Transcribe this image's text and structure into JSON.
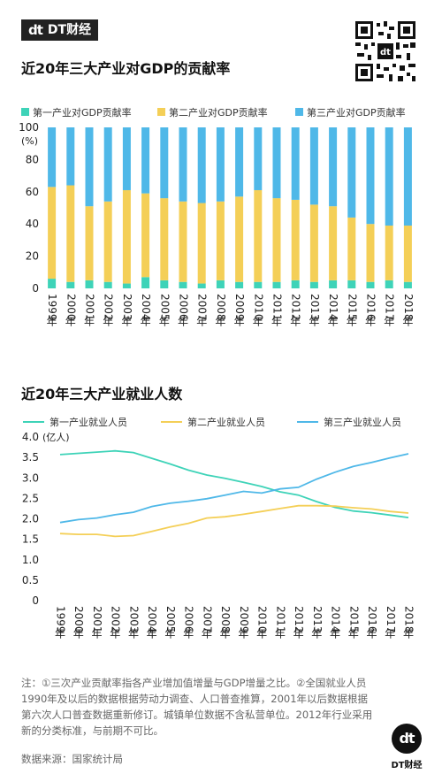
{
  "brand": {
    "mark": "dt",
    "name": "DT财经"
  },
  "chart_data": [
    {
      "type": "bar",
      "stacked": true,
      "title": "近20年三大产业对GDP的贡献率",
      "ylabel": "(%)",
      "ylim": [
        0,
        100
      ],
      "yticks": [
        0,
        20,
        40,
        60,
        80,
        100
      ],
      "legend_position": "top",
      "categories": [
        "1999年",
        "2000年",
        "2001年",
        "2002年",
        "2003年",
        "2004年",
        "2005年",
        "2006年",
        "2007年",
        "2008年",
        "2009年",
        "2010年",
        "2011年",
        "2012年",
        "2013年",
        "2014年",
        "2015年",
        "2016年",
        "2017年",
        "2018年"
      ],
      "series": [
        {
          "name": "第一产业对GDP贡献率",
          "color": "#3ed3b8",
          "values": [
            6,
            4,
            5,
            4,
            3,
            7,
            5,
            4,
            3,
            5,
            4,
            4,
            4,
            5,
            4,
            5,
            5,
            4,
            5,
            4
          ]
        },
        {
          "name": "第二产业对GDP贡献率",
          "color": "#f4cf57",
          "values": [
            57,
            60,
            46,
            50,
            58,
            52,
            51,
            50,
            50,
            49,
            53,
            57,
            52,
            50,
            48,
            46,
            39,
            36,
            34,
            35
          ]
        },
        {
          "name": "第三产业对GDP贡献率",
          "color": "#4fb8e8",
          "values": [
            37,
            36,
            49,
            46,
            39,
            41,
            44,
            46,
            47,
            46,
            43,
            39,
            44,
            45,
            48,
            49,
            56,
            60,
            61,
            61
          ]
        }
      ]
    },
    {
      "type": "line",
      "title": "近20年三大产业就业人数",
      "ylabel": "(亿人)",
      "ylim": [
        0,
        4.0
      ],
      "yticks": [
        "0",
        "0.5",
        "1.0",
        "1.5",
        "2.0",
        "2.5",
        "3.0",
        "3.5",
        "4.0"
      ],
      "legend_position": "top",
      "categories": [
        "1999年",
        "2000年",
        "2001年",
        "2002年",
        "2003年",
        "2004年",
        "2005年",
        "2006年",
        "2007年",
        "2008年",
        "2009年",
        "2010年",
        "2011年",
        "2012年",
        "2013年",
        "2014年",
        "2015年",
        "2016年",
        "2017年",
        "2018年"
      ],
      "series": [
        {
          "name": "第一产业就业人员",
          "color": "#3ed3b8",
          "values": [
            3.57,
            3.6,
            3.63,
            3.66,
            3.62,
            3.48,
            3.34,
            3.19,
            3.07,
            2.99,
            2.89,
            2.79,
            2.66,
            2.58,
            2.42,
            2.28,
            2.19,
            2.15,
            2.09,
            2.03
          ]
        },
        {
          "name": "第二产业就业人员",
          "color": "#f4cf57",
          "values": [
            1.64,
            1.62,
            1.62,
            1.57,
            1.59,
            1.69,
            1.8,
            1.89,
            2.02,
            2.05,
            2.11,
            2.18,
            2.25,
            2.32,
            2.32,
            2.31,
            2.27,
            2.24,
            2.18,
            2.14
          ]
        },
        {
          "name": "第三产业就业人员",
          "color": "#4fb8e8",
          "values": [
            1.91,
            1.98,
            2.02,
            2.1,
            2.16,
            2.3,
            2.38,
            2.43,
            2.49,
            2.58,
            2.67,
            2.63,
            2.73,
            2.77,
            2.97,
            3.14,
            3.28,
            3.38,
            3.49,
            3.59
          ]
        }
      ]
    }
  ],
  "notes": "注：①三次产业贡献率指各产业增加值增量与GDP增量之比。②全国就业人员1990年及以后的数据根据劳动力调查、人口普查推算，2001年以后数据根据第六次人口普查数据重新修订。城镇单位数据不含私营单位。2012年行业采用新的分类标准，与前期不可比。",
  "source": "数据来源：国家统计局"
}
